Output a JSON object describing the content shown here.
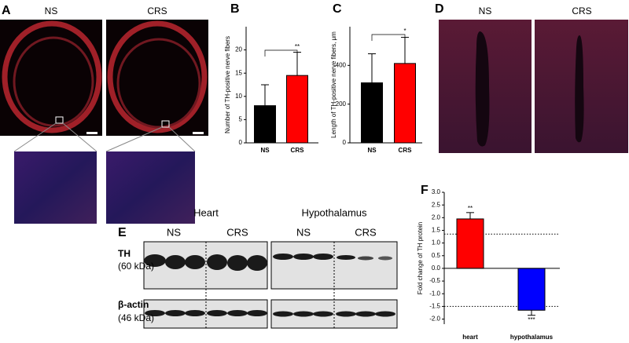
{
  "figure_a": {
    "label": "A",
    "groups": [
      "NS",
      "CRS"
    ]
  },
  "figure_d": {
    "label": "D",
    "groups": [
      "NS",
      "CRS"
    ]
  },
  "figure_e": {
    "label": "E",
    "tissues": [
      "Heart",
      "Hypothalamus"
    ],
    "groups": [
      "NS",
      "CRS",
      "NS",
      "CRS"
    ],
    "rows": [
      {
        "name": "TH",
        "size": "(60 kDa)"
      },
      {
        "name": "β-actin",
        "size": "(46 kDa)"
      }
    ]
  },
  "chart_data": [
    {
      "type": "bar",
      "panel": "B",
      "ylabel": "Number of TH-positive nerve fibers",
      "categories": [
        "NS",
        "CRS"
      ],
      "values": [
        8,
        14.5
      ],
      "errors": [
        4.5,
        5
      ],
      "colors": [
        "#000000",
        "#ff0000"
      ],
      "ylim": [
        0,
        25
      ],
      "yticks": [
        0,
        5,
        10,
        15,
        20
      ],
      "annotation": "**"
    },
    {
      "type": "bar",
      "panel": "C",
      "ylabel": "Length of TH-positive nerve fibers, μm",
      "categories": [
        "NS",
        "CRS"
      ],
      "values": [
        310,
        410
      ],
      "errors": [
        150,
        135
      ],
      "colors": [
        "#000000",
        "#ff0000"
      ],
      "ylim": [
        0,
        600
      ],
      "yticks": [
        0,
        200,
        400
      ],
      "annotation": "*"
    },
    {
      "type": "bar",
      "panel": "F",
      "ylabel": "Fold change of TH protein",
      "categories": [
        "heart",
        "hypothalamus"
      ],
      "values": [
        1.95,
        -1.65
      ],
      "errors": [
        0.25,
        0.2
      ],
      "colors": [
        "#ff0000",
        "#0000ff"
      ],
      "ylim": [
        -2.2,
        3.0
      ],
      "yticks": [
        {
          "value": 3,
          "label": "3.0"
        },
        2.5,
        {
          "value": 2,
          "label": "2.0"
        },
        1.5,
        {
          "value": 1,
          "label": "1.0"
        },
        0.5,
        {
          "value": 0,
          "label": "0.0"
        },
        -0.5,
        {
          "value": -1,
          "label": "-1.0"
        },
        -1.5,
        {
          "value": -2,
          "label": "-2.0"
        }
      ],
      "reference_lines": [
        1.35,
        -1.5
      ],
      "bar_annotations": [
        "**",
        "***"
      ]
    }
  ]
}
